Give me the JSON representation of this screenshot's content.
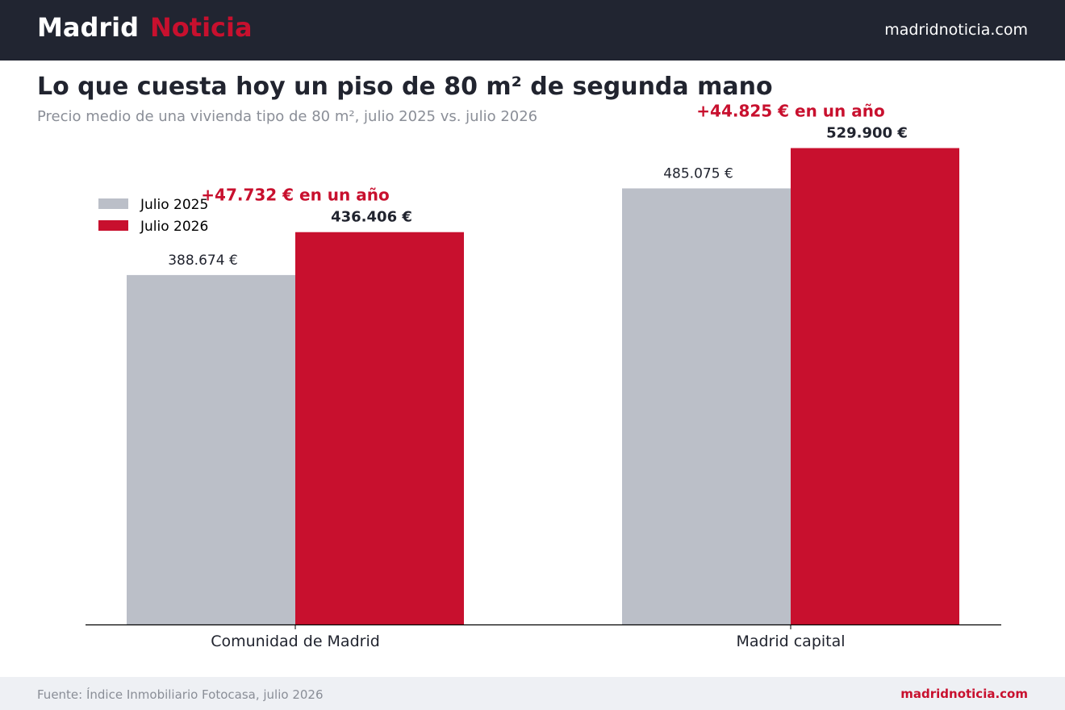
{
  "header": {
    "brand_part1": "Madrid",
    "brand_part2": "Noticia",
    "site": "madridnoticia.com"
  },
  "title": "Lo que cuesta hoy un piso de 80 m² de segunda mano",
  "subtitle": "Precio medio de una vivienda tipo de 80 m², julio 2025 vs. julio 2026",
  "footer": {
    "source": "Fuente: Índice Inmobiliario Fotocasa, julio 2026",
    "site": "madridnoticia.com"
  },
  "colors": {
    "series_2025": "#bbbfc8",
    "series_2026": "#c8102e",
    "header_bg": "#212531",
    "text": "#21242f",
    "accent": "#c8102e"
  },
  "chart_data": {
    "type": "bar",
    "categories": [
      "Comunidad de Madrid",
      "Madrid capital"
    ],
    "series": [
      {
        "name": "Julio 2025",
        "values": [
          388674,
          485075
        ],
        "labels": [
          "388.674 €",
          "485.075 €"
        ]
      },
      {
        "name": "Julio 2026",
        "values": [
          436406,
          529900
        ],
        "labels": [
          "436.406 €",
          "529.900 €"
        ]
      }
    ],
    "annotations": [
      "+47.732 € en un año",
      "+44.825 € en un año"
    ],
    "ylim": [
      0,
      560000
    ],
    "legend": "top-left",
    "grid": false
  }
}
